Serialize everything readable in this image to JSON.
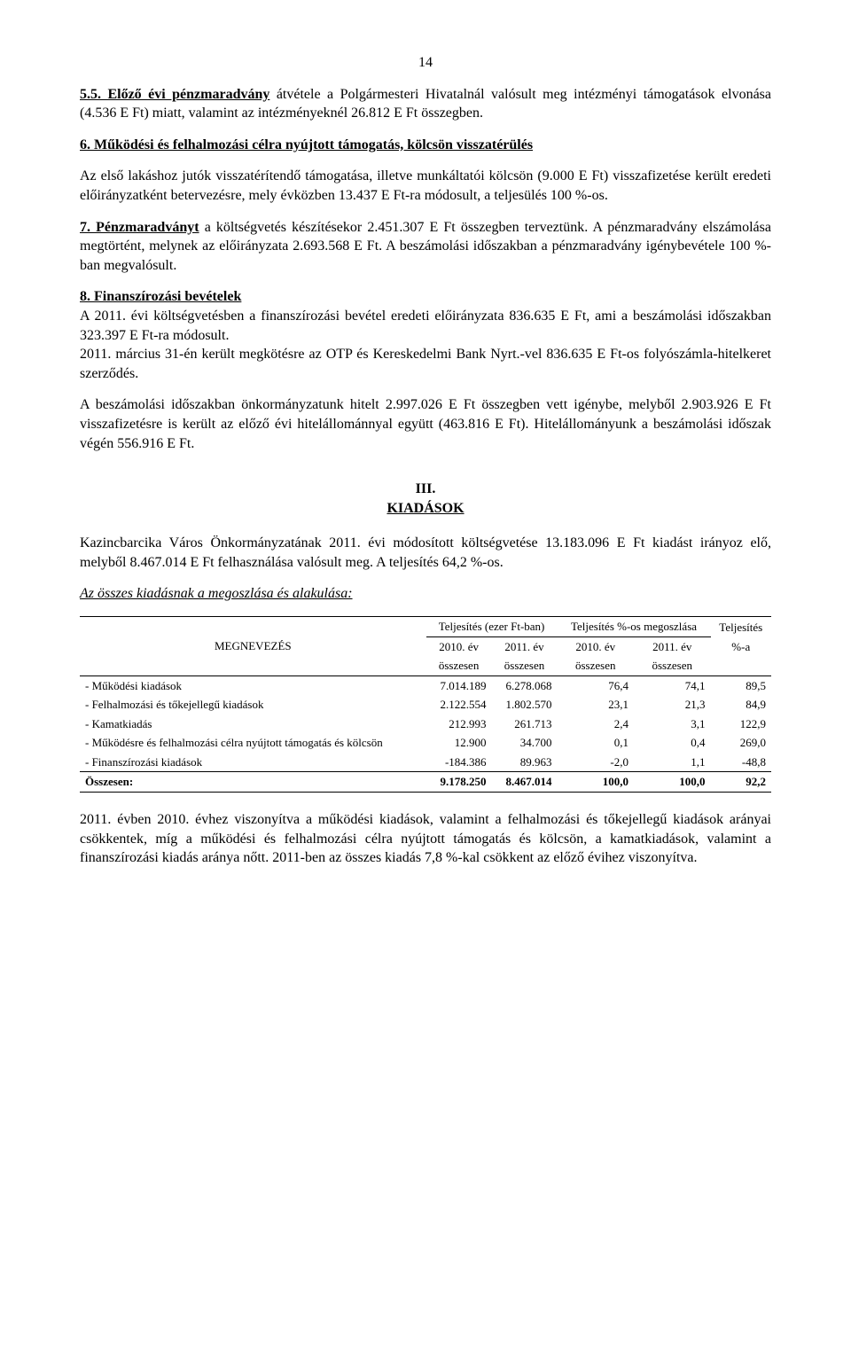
{
  "page_number": "14",
  "p55": {
    "prefix": "5.5. Előző évi pénzmaradvány",
    "rest": " átvétele a Polgármesteri Hivatalnál valósult meg intézményi támogatások elvonása (4.536 E Ft) miatt, valamint az intézményeknél 26.812 E Ft összegben."
  },
  "p6": {
    "prefix": "6. Működési és felhalmozási célra nyújtott támogatás, kölcsön visszatérülés",
    "rest": "Az első lakáshoz jutók visszatérítendő támogatása, illetve munkáltatói kölcsön (9.000 E Ft) visszafizetése került eredeti előirányzatként betervezésre, mely évközben 13.437 E Ft-ra módosult, a teljesülés 100 %-os."
  },
  "p7": {
    "prefix": "7. Pénzmaradványt",
    "rest": " a költségvetés készítésekor 2.451.307 E Ft összegben terveztünk. A pénzmaradvány elszámolása megtörtént, melynek az előirányzata 2.693.568 E Ft. A beszámolási időszakban a pénzmaradvány igénybevétele 100 %-ban megvalósult."
  },
  "p8": {
    "prefix": "8. Finanszírozási bevételek",
    "rest1": "A 2011. évi költségvetésben a finanszírozási bevétel eredeti előirányzata 836.635 E Ft, ami a beszámolási időszakban 323.397 E Ft-ra módosult.",
    "rest2": "2011. március 31-én került megkötésre az OTP és Kereskedelmi Bank Nyrt.-vel 836.635 E Ft-os folyószámla-hitelkeret szerződés."
  },
  "p_hitelt": "A beszámolási időszakban önkormányzatunk hitelt 2.997.026 E Ft összegben vett igénybe, melyből 2.903.926 E Ft visszafizetésre is került az előző évi hitelállománnyal együtt (463.816 E Ft). Hitelállományunk a beszámolási időszak végén 556.916 E Ft.",
  "section3": {
    "num": "III.",
    "title": "KIADÁSOK"
  },
  "p_kazinc": "Kazincbarcika Város Önkormányzatának 2011. évi módosított költségvetése 13.183.096 E Ft kiadást irányoz elő, melyből 8.467.014 E Ft felhasználása valósult meg. A teljesítés 64,2 %-os.",
  "tbl_intro": "Az összes kiadásnak a  megoszlása és alakulása:",
  "table": {
    "col_label": "MEGNEVEZÉS",
    "head_group_a": "Teljesítés (ezer Ft-ban)",
    "head_group_b": "Teljesítés %-os megoszlása",
    "head_group_c": "Teljesítés",
    "col_2010": "2010. év",
    "col_2011": "2011. év",
    "col_sub": "összesen",
    "col_pct": "%-a",
    "rows": [
      {
        "label": "- Működési kiadások",
        "a": "7.014.189",
        "b": "6.278.068",
        "c": "76,4",
        "d": "74,1",
        "e": "89,5"
      },
      {
        "label": "- Felhalmozási és tőkejellegű kiadások",
        "a": "2.122.554",
        "b": "1.802.570",
        "c": "23,1",
        "d": "21,3",
        "e": "84,9"
      },
      {
        "label": "- Kamatkiadás",
        "a": "212.993",
        "b": "261.713",
        "c": "2,4",
        "d": "3,1",
        "e": "122,9"
      },
      {
        "label": "- Működésre és felhalmozási célra nyújtott támogatás és kölcsön",
        "a": "12.900",
        "b": "34.700",
        "c": "0,1",
        "d": "0,4",
        "e": "269,0"
      },
      {
        "label": "- Finanszírozási kiadások",
        "a": "-184.386",
        "b": "89.963",
        "c": "-2,0",
        "d": "1,1",
        "e": "-48,8"
      }
    ],
    "total": {
      "label": "Összesen:",
      "a": "9.178.250",
      "b": "8.467.014",
      "c": "100,0",
      "d": "100,0",
      "e": "92,2"
    }
  },
  "p_footer": "2011. évben 2010. évhez viszonyítva a működési kiadások, valamint a felhalmozási és tőkejellegű kiadások arányai csökkentek, míg a működési és felhalmozási célra nyújtott támogatás és kölcsön, a kamatkiadások, valamint a finanszírozási kiadás aránya nőtt. 2011-ben az összes kiadás 7,8 %-kal csökkent az előző évihez viszonyítva."
}
